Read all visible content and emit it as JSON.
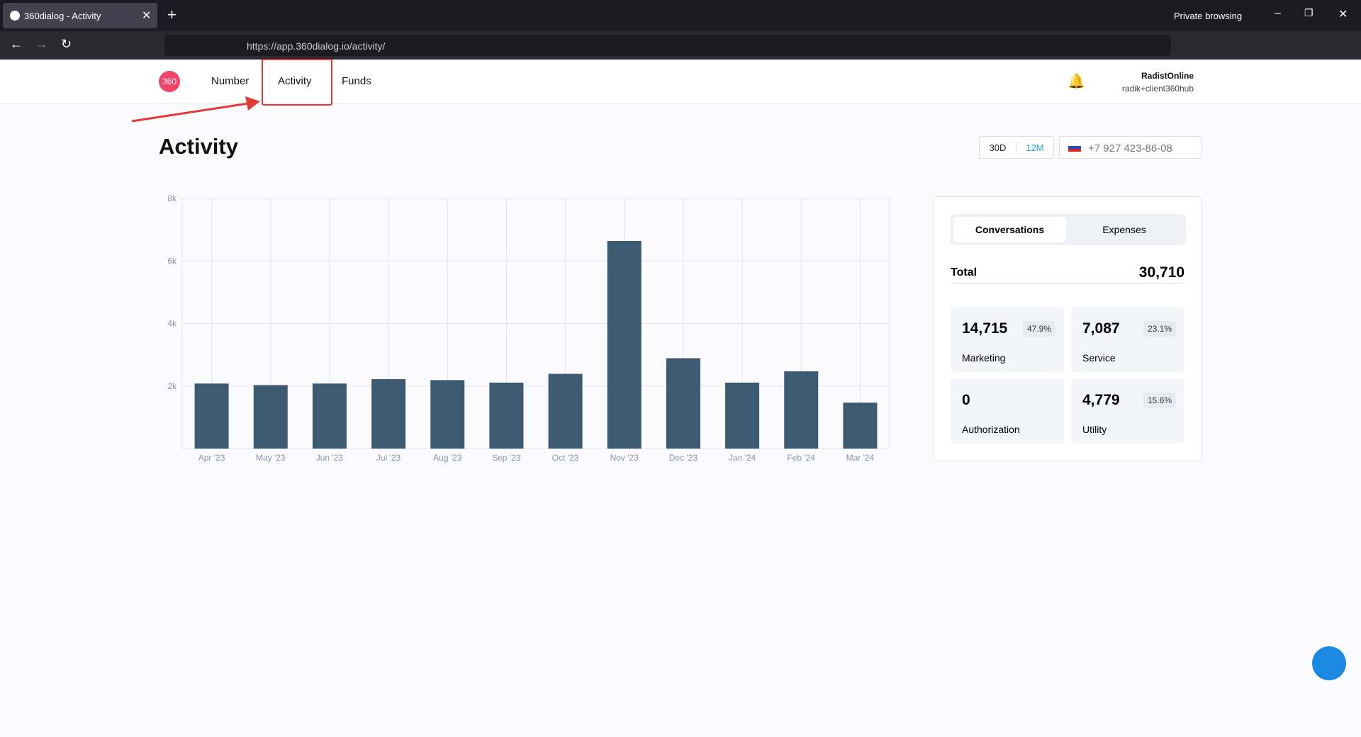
{
  "browser": {
    "tab_title": "360dialog - Activity",
    "private": "Private browsing",
    "url": "https://app.360dialog.io/activity/"
  },
  "nav": {
    "logo": "360",
    "items": [
      "Number",
      "Activity",
      "Funds"
    ],
    "user_name": "RadistOnline",
    "user_email": "radik+client360hub"
  },
  "page": {
    "title": "Activity",
    "ranges": [
      "30D",
      "12M"
    ],
    "phone": "+7 927 423-86-08"
  },
  "chart_data": {
    "type": "bar",
    "categories": [
      "Apr '23",
      "May '23",
      "Jun '23",
      "Jul '23",
      "Aug '23",
      "Sep '23",
      "Oct '23",
      "Nov '23",
      "Dec '23",
      "Jan '24",
      "Feb '24",
      "Mar '24"
    ],
    "values": [
      2080,
      2030,
      2080,
      2220,
      2190,
      2110,
      2390,
      6640,
      2890,
      2110,
      2470,
      1470
    ],
    "color": "#3d5a73",
    "ylim": [
      0,
      8000
    ],
    "yticks": [
      {
        "value": 2000,
        "label": "2k"
      },
      {
        "value": 4000,
        "label": "4k"
      },
      {
        "value": 6000,
        "label": "6k"
      },
      {
        "value": 8000,
        "label": "8k"
      }
    ],
    "grid": true
  },
  "summary": {
    "tabs": [
      "Conversations",
      "Expenses"
    ],
    "total_label": "Total",
    "total": "30,710",
    "items": [
      {
        "value": "14,715",
        "share": "47.9%",
        "label": "Marketing"
      },
      {
        "value": "7,087",
        "share": "23.1%",
        "label": "Service"
      },
      {
        "value": "0",
        "label": "Authorization"
      },
      {
        "value": "4,779",
        "share": "15.6%",
        "label": "Utility"
      }
    ]
  }
}
